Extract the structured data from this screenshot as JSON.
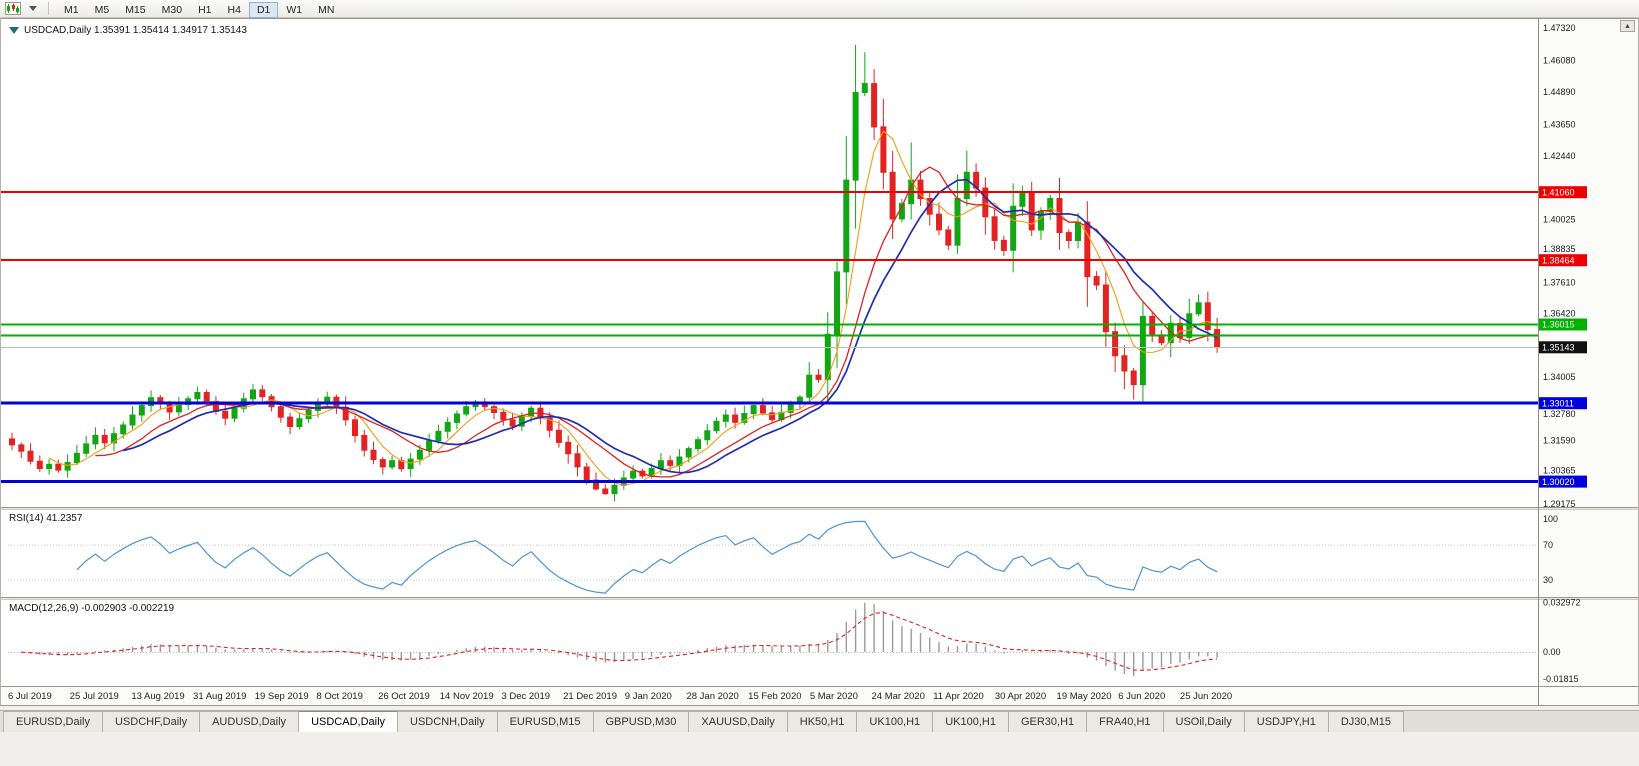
{
  "toolbar": {
    "timeframes": [
      "M1",
      "M5",
      "M15",
      "M30",
      "H1",
      "H4",
      "D1",
      "W1",
      "MN"
    ],
    "active_timeframe": "D1"
  },
  "icons": {
    "scroll_up_glyph": "▲"
  },
  "chart": {
    "title": "USDCAD,Daily 1.35391 1.35414 1.34917 1.35143",
    "symbol": "USDCAD,Daily",
    "open": "1.35391",
    "high": "1.35414",
    "low": "1.34917",
    "close": "1.35143"
  },
  "chart_data": {
    "type": "candlestick",
    "symbol": "USDCAD",
    "timeframe": "Daily",
    "ylim": [
      1.29091,
      1.47665
    ],
    "x_labels": [
      "6 Jul 2019",
      "25 Jul 2019",
      "13 Aug 2019",
      "31 Aug 2019",
      "19 Sep 2019",
      "8 Oct 2019",
      "26 Oct 2019",
      "14 Nov 2019",
      "3 Dec 2019",
      "21 Dec 2019",
      "9 Jan 2020",
      "28 Jan 2020",
      "15 Feb 2020",
      "5 Mar 2020",
      "24 Mar 2020",
      "11 Apr 2020",
      "30 Apr 2020",
      "19 May 2020",
      "6 Jun 2020",
      "25 Jun 2020"
    ],
    "price_axis_labels": [
      1.4732,
      1.4608,
      1.4489,
      1.4365,
      1.4244,
      1.40025,
      1.38835,
      1.3761,
      1.3642,
      1.34005,
      1.3278,
      1.3159,
      1.30365,
      1.29175
    ],
    "open_first": 1.3165,
    "closes": [
      1.3142,
      1.3118,
      1.308,
      1.3052,
      1.3068,
      1.3046,
      1.3075,
      1.311,
      1.3146,
      1.3178,
      1.315,
      1.3185,
      1.3218,
      1.3256,
      1.3292,
      1.3322,
      1.33,
      1.3268,
      1.3296,
      1.3318,
      1.3342,
      1.3308,
      1.327,
      1.3244,
      1.3282,
      1.3318,
      1.3352,
      1.3326,
      1.3288,
      1.3248,
      1.3212,
      1.3242,
      1.3274,
      1.3304,
      1.3324,
      1.3286,
      1.3238,
      1.3178,
      1.3122,
      1.3086,
      1.3058,
      1.3082,
      1.3052,
      1.3088,
      1.3122,
      1.3158,
      1.3194,
      1.3228,
      1.326,
      1.3288,
      1.3306,
      1.3288,
      1.3266,
      1.3238,
      1.3214,
      1.3252,
      1.3282,
      1.3244,
      1.3198,
      1.3152,
      1.3108,
      1.3058,
      1.3008,
      1.2974,
      1.2956,
      1.2988,
      1.3016,
      1.3042,
      1.3024,
      1.3052,
      1.3082,
      1.3064,
      1.3096,
      1.3128,
      1.3162,
      1.3196,
      1.3232,
      1.3256,
      1.3228,
      1.3262,
      1.3292,
      1.3264,
      1.3238,
      1.3266,
      1.3302,
      1.3324,
      1.3408,
      1.3392,
      1.3564,
      1.3802,
      1.4152,
      1.4486,
      1.452,
      1.4355,
      1.4182,
      1.4004,
      1.4062,
      1.4152,
      1.4082,
      1.4022,
      1.3962,
      1.3904,
      1.4082,
      1.4182,
      1.4122,
      1.4012,
      1.3922,
      1.3884,
      1.4052,
      1.4102,
      1.3962,
      1.4032,
      1.4082,
      1.3952,
      1.3922,
      1.3992,
      1.3784,
      1.3752,
      1.3574,
      1.3482,
      1.3424,
      1.3372,
      1.3632,
      1.3562,
      1.3532,
      1.3606,
      1.3552,
      1.3642,
      1.3684,
      1.3582,
      1.35143
    ],
    "wick_overrides": [
      {
        "i": 42,
        "l": 1.304
      },
      {
        "i": 63,
        "l": 1.2968
      },
      {
        "i": 64,
        "l": 1.2952
      },
      {
        "i": 91,
        "h": 1.4668
      },
      {
        "i": 92,
        "h": 1.464
      },
      {
        "i": 93,
        "h": 1.4575
      },
      {
        "i": 97,
        "h": 1.4296
      },
      {
        "i": 103,
        "h": 1.4265
      },
      {
        "i": 120,
        "l": 1.3355
      },
      {
        "i": 121,
        "l": 1.3315
      },
      {
        "i": 122,
        "h": 1.3686
      }
    ],
    "candle_colors": {
      "up": "#12a712",
      "down": "#e32222"
    },
    "moving_averages": [
      {
        "name": "ma-fast",
        "period": 5,
        "color": "#f39c12",
        "width": 1.1
      },
      {
        "name": "ma-mid",
        "period": 10,
        "color": "#e02020",
        "width": 1.3
      },
      {
        "name": "ma-slow",
        "period": 13,
        "color": "#1f2db0",
        "width": 1.7
      }
    ],
    "hlines": [
      {
        "value": 1.4106,
        "color": "#ee0000",
        "width": 2,
        "tagged": true,
        "tag": "1.41060"
      },
      {
        "value": 1.38464,
        "color": "#ee0000",
        "width": 2,
        "tagged": true,
        "tag": "1.38464"
      },
      {
        "value": 1.36015,
        "color": "#00b200",
        "width": 2,
        "tagged": true,
        "tag": "1.36015"
      },
      {
        "value": 1.356,
        "color": "#00b200",
        "width": 2,
        "tagged": false,
        "tag": ""
      },
      {
        "value": 1.33011,
        "color": "#0000dd",
        "width": 3,
        "tagged": true,
        "tag": "1.33011"
      },
      {
        "value": 1.3002,
        "color": "#0000dd",
        "width": 3,
        "tagged": true,
        "tag": "1.30020"
      }
    ],
    "current_price": {
      "value": 1.35143,
      "tag": "1.35143",
      "line_color": "#bdbdbd",
      "tag_color": "#111111"
    },
    "rsi": {
      "label": "RSI(14) 41.2357",
      "display_period": 14,
      "current": 41.2357,
      "line_color": "#4f94cd",
      "levels": [
        {
          "value": 100,
          "text": "100",
          "line": false
        },
        {
          "value": 70,
          "text": "70",
          "line": true
        },
        {
          "value": 30,
          "text": "30",
          "line": true
        }
      ]
    },
    "macd": {
      "label": "MACD(12,26,9) -0.002903 -0.002219",
      "display_params": "12,26,9",
      "main_value": -0.002903,
      "signal_value": -0.002219,
      "hist_color": "#9a9a9a",
      "signal_color": "#e02020",
      "axis_labels": [
        {
          "value": 0.032972,
          "text": "0.032972"
        },
        {
          "value": 0,
          "text": "0.00"
        },
        {
          "value": -0.01815,
          "text": "-0.01815"
        }
      ]
    }
  },
  "tabs": {
    "items": [
      "EURUSD,Daily",
      "USDCHF,Daily",
      "AUDUSD,Daily",
      "USDCAD,Daily",
      "USDCNH,Daily",
      "EURUSD,M15",
      "GBPUSD,M30",
      "XAUUSD,Daily",
      "HK50,H1",
      "UK100,H1",
      "UK100,H1",
      "GER30,H1",
      "FRA40,H1",
      "USOil,Daily",
      "USDJPY,H1",
      "DJ30,M15"
    ],
    "active": "USDCAD,Daily"
  }
}
